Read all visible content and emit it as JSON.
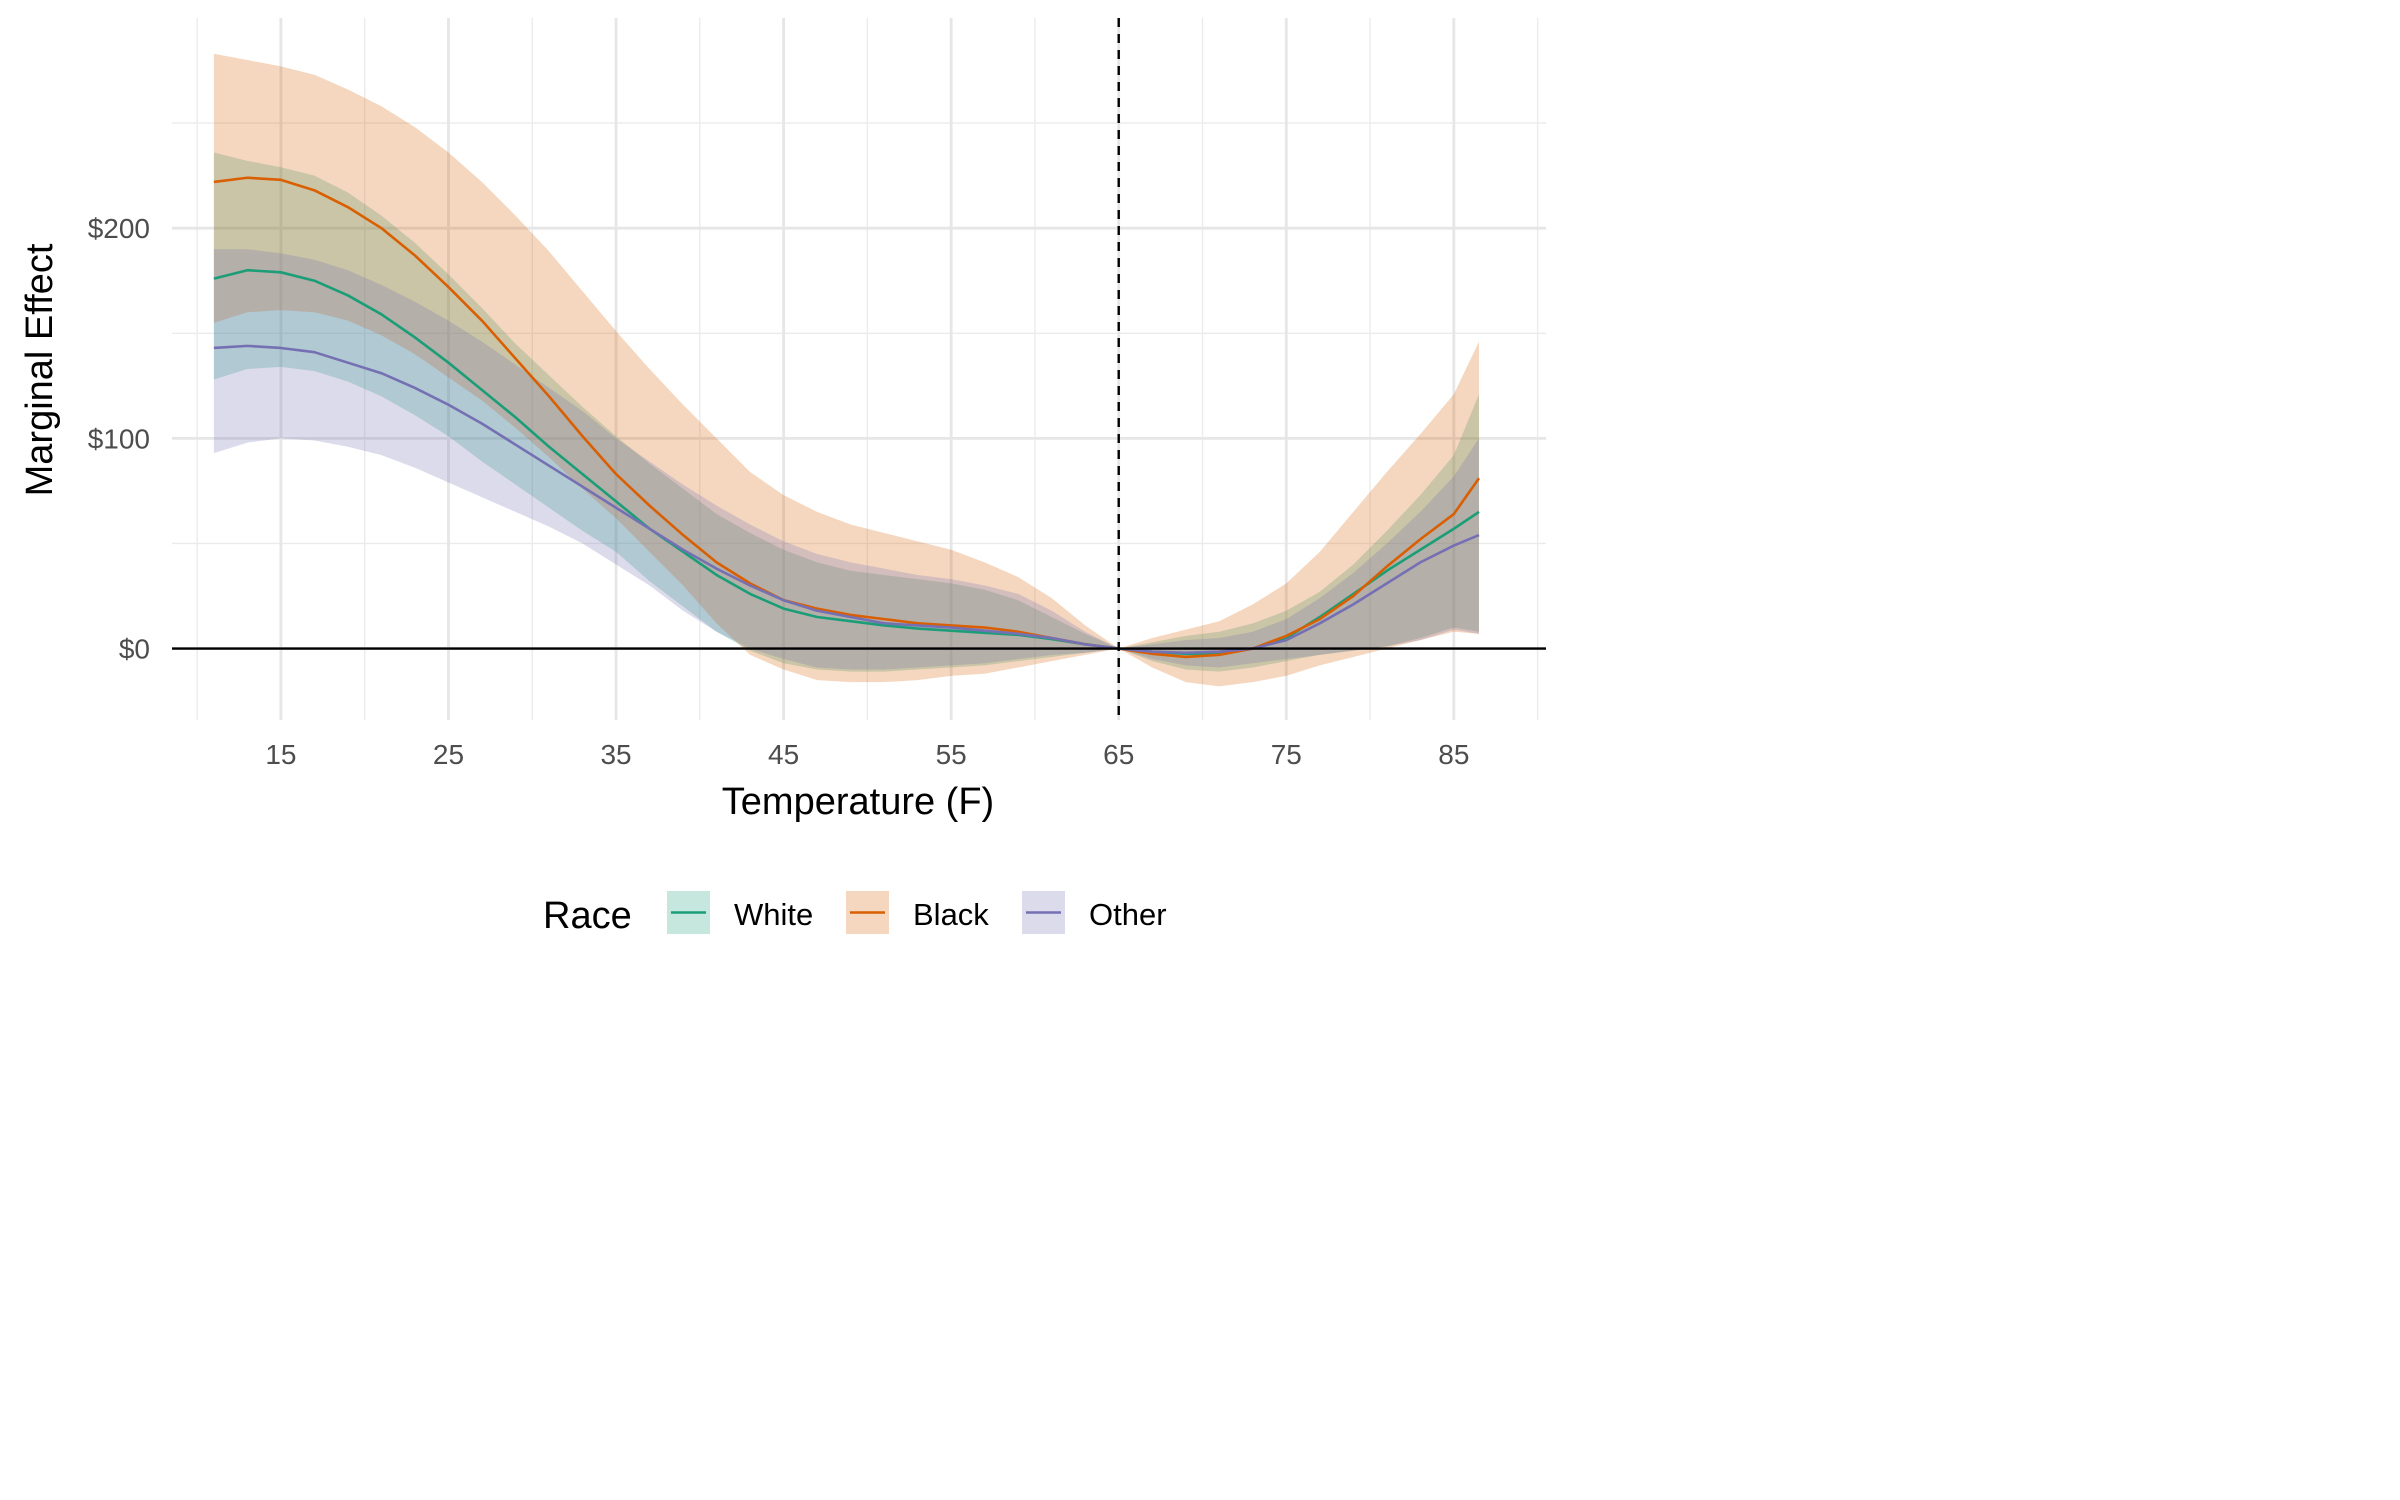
{
  "chart_data": {
    "type": "line",
    "title": "",
    "xlabel": "Temperature (F)",
    "ylabel": "Marginal Effect",
    "xlim": [
      8.5,
      90.5
    ],
    "ylim": [
      -34,
      300
    ],
    "x_ticks": [
      15,
      25,
      35,
      45,
      55,
      65,
      75,
      85
    ],
    "x_tick_labels": [
      "15",
      "25",
      "35",
      "45",
      "55",
      "65",
      "75",
      "85"
    ],
    "y_ticks": [
      0,
      100,
      200
    ],
    "y_tick_labels": [
      "$0",
      "$100",
      "$200"
    ],
    "grid": true,
    "reference_lines": {
      "vertical_dashed_x": 65,
      "horizontal_y": 0
    },
    "legend": {
      "title": "Race",
      "position": "bottom"
    },
    "x": [
      11,
      13,
      15,
      17,
      19,
      21,
      23,
      25,
      27,
      29,
      31,
      33,
      35,
      37,
      39,
      41,
      43,
      45,
      47,
      49,
      51,
      53,
      55,
      57,
      59,
      61,
      63,
      65,
      67,
      69,
      71,
      73,
      75,
      77,
      79,
      81,
      83,
      85,
      86.5
    ],
    "series": [
      {
        "name": "White",
        "color": "#1b9e77",
        "values": [
          176,
          180,
          179,
          175,
          168,
          159,
          148,
          136,
          123,
          110,
          96,
          83,
          70,
          57,
          46,
          35,
          26,
          19,
          15,
          13,
          11,
          9.5,
          8.5,
          7.5,
          6.5,
          4.5,
          2,
          0,
          -1.5,
          -2.5,
          -2.5,
          0,
          5,
          15,
          26,
          37,
          47,
          57,
          65
        ],
        "lower": [
          128,
          133,
          134,
          132,
          127,
          120,
          111,
          101,
          89,
          78,
          67,
          56,
          46,
          32,
          20,
          8,
          -1,
          -7,
          -10,
          -11,
          -11,
          -10,
          -9,
          -8,
          -6,
          -4,
          -2,
          0,
          -6,
          -10,
          -11,
          -9,
          -6,
          -3,
          -1,
          1,
          5,
          10,
          8
        ],
        "upper": [
          236,
          232,
          229,
          225,
          217,
          206,
          193,
          178,
          162,
          145,
          130,
          115,
          101,
          88,
          76,
          64,
          55,
          47,
          41,
          37,
          35,
          33,
          31,
          28,
          23,
          15,
          7,
          0,
          3,
          6,
          8,
          12,
          18,
          27,
          40,
          56,
          73,
          92,
          121
        ]
      },
      {
        "name": "Black",
        "color": "#d95f02",
        "values": [
          222,
          224,
          223,
          218,
          210,
          200,
          187,
          172,
          156,
          138,
          120,
          101,
          83,
          68,
          54,
          41,
          31,
          23,
          19,
          16,
          14,
          12,
          11,
          10,
          8,
          5,
          2,
          0,
          -2.5,
          -4,
          -3,
          0,
          6,
          14,
          25,
          39,
          52,
          64,
          81
        ],
        "lower": [
          155,
          160,
          161,
          160,
          156,
          149,
          140,
          129,
          118,
          105,
          91,
          76,
          62,
          46,
          30,
          12,
          -3,
          -10,
          -15,
          -16,
          -16,
          -15,
          -13,
          -12,
          -9,
          -6,
          -3,
          0,
          -9,
          -16,
          -18,
          -16,
          -13,
          -8,
          -4,
          0,
          4,
          8,
          7
        ],
        "upper": [
          283,
          280,
          277,
          273,
          266,
          258,
          248,
          236,
          222,
          206,
          189,
          170,
          151,
          133,
          116,
          100,
          84,
          73,
          65,
          59,
          55,
          51,
          47,
          41,
          34,
          24,
          11,
          0,
          5,
          9,
          13,
          21,
          31,
          46,
          65,
          84,
          102,
          121,
          146
        ]
      },
      {
        "name": "Other",
        "color": "#7570b3",
        "values": [
          143,
          144,
          143,
          141,
          136,
          131,
          124,
          116,
          107,
          97,
          87,
          77,
          67,
          57,
          47,
          38,
          30,
          23,
          18,
          15,
          12,
          11,
          10,
          8.5,
          7,
          5,
          2,
          0,
          -1.5,
          -2,
          -1.5,
          0,
          4,
          12,
          21,
          31,
          41,
          49,
          54
        ],
        "lower": [
          93,
          98,
          100,
          99,
          96,
          92,
          86,
          79,
          72,
          65,
          58,
          50,
          40,
          30,
          18,
          8,
          0,
          -5,
          -9,
          -10,
          -10,
          -9,
          -8,
          -7,
          -5,
          -3,
          -2,
          0,
          -5,
          -8,
          -9,
          -7,
          -5,
          -3,
          -1,
          1,
          4,
          9,
          7
        ],
        "upper": [
          190,
          190,
          188,
          185,
          180,
          173,
          165,
          156,
          146,
          135,
          124,
          113,
          100,
          89,
          78,
          68,
          59,
          51,
          45,
          41,
          38,
          35,
          33,
          30,
          26,
          18,
          8,
          0,
          2,
          4,
          5,
          8,
          14,
          24,
          36,
          50,
          65,
          82,
          100
        ]
      }
    ]
  }
}
